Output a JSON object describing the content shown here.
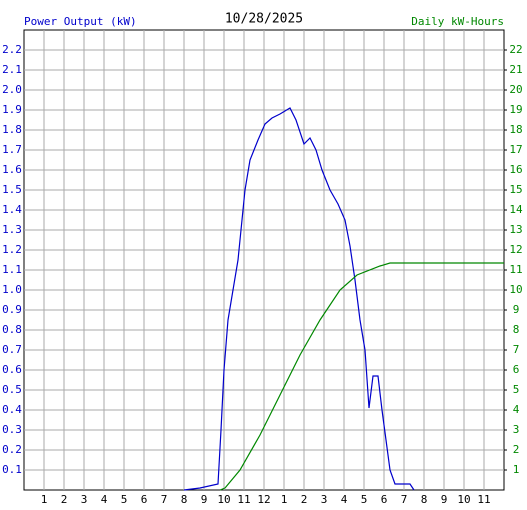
{
  "chart_data": {
    "type": "line",
    "title": "10/28/2025",
    "y_label": "Power Output (kW)",
    "y2_label": "Daily kW-Hours",
    "xlim": [
      0,
      24
    ],
    "xticks": [
      {
        "value": 1,
        "label": "1"
      },
      {
        "value": 2,
        "label": "2"
      },
      {
        "value": 3,
        "label": "3"
      },
      {
        "value": 4,
        "label": "4"
      },
      {
        "value": 5,
        "label": "5"
      },
      {
        "value": 6,
        "label": "6"
      },
      {
        "value": 7,
        "label": "7"
      },
      {
        "value": 8,
        "label": "8"
      },
      {
        "value": 9,
        "label": "9"
      },
      {
        "value": 10,
        "label": "10"
      },
      {
        "value": 11,
        "label": "11"
      },
      {
        "value": 12,
        "label": "12"
      },
      {
        "value": 13,
        "label": "1"
      },
      {
        "value": 14,
        "label": "2"
      },
      {
        "value": 15,
        "label": "3"
      },
      {
        "value": 16,
        "label": "4"
      },
      {
        "value": 17,
        "label": "5"
      },
      {
        "value": 18,
        "label": "6"
      },
      {
        "value": 19,
        "label": "7"
      },
      {
        "value": 20,
        "label": "8"
      },
      {
        "value": 21,
        "label": "9"
      },
      {
        "value": 22,
        "label": "10"
      },
      {
        "value": 23,
        "label": "11"
      }
    ],
    "ylim": [
      0,
      2.3
    ],
    "yticks": [
      0.1,
      0.2,
      0.3,
      0.4,
      0.5,
      0.6,
      0.7,
      0.8,
      0.9,
      {
        "value": 1,
        "label": "1.0"
      },
      1.1,
      1.2,
      1.3,
      1.4,
      1.5,
      1.6,
      1.7,
      1.8,
      1.9,
      {
        "value": 2,
        "label": "2.0"
      },
      2.1,
      2.2
    ],
    "y2lim": [
      0,
      23
    ],
    "y2ticks": [
      1,
      2,
      3,
      4,
      5,
      6,
      7,
      8,
      9,
      10,
      11,
      12,
      13,
      14,
      15,
      16,
      17,
      18,
      19,
      20,
      21,
      22
    ],
    "grid": true,
    "series": [
      {
        "name": "Power Output (kW)",
        "color": "#0000cc",
        "x": [
          8.0,
          8.8,
          9.7,
          9.85,
          10.0,
          10.2,
          10.45,
          10.7,
          10.85,
          11.05,
          11.3,
          11.7,
          12.05,
          12.4,
          12.8,
          13.3,
          13.6,
          14.0,
          14.3,
          14.6,
          14.9,
          15.3,
          15.7,
          16.05,
          16.3,
          16.55,
          16.8,
          17.05,
          17.25,
          17.45,
          17.7,
          17.9,
          18.1,
          18.3,
          18.55,
          19.3,
          19.5
        ],
        "values": [
          0,
          0.01,
          0.03,
          0.3,
          0.6,
          0.85,
          1.0,
          1.15,
          1.3,
          1.5,
          1.65,
          1.75,
          1.83,
          1.86,
          1.88,
          1.91,
          1.85,
          1.73,
          1.76,
          1.7,
          1.6,
          1.5,
          1.43,
          1.35,
          1.22,
          1.05,
          0.85,
          0.7,
          0.41,
          0.57,
          0.57,
          0.4,
          0.25,
          0.1,
          0.03,
          0.03,
          0
        ]
      },
      {
        "name": "Daily kW-Hours",
        "color": "#008800",
        "axis": "y2",
        "x": [
          9.8,
          10.05,
          10.8,
          11.8,
          12.8,
          13.8,
          14.8,
          15.8,
          16.65,
          17.8,
          18.3,
          24
        ],
        "values": [
          0,
          0.1,
          1,
          2.75,
          4.75,
          6.75,
          8.5,
          10,
          10.75,
          11.2,
          11.35,
          11.35
        ]
      }
    ]
  }
}
